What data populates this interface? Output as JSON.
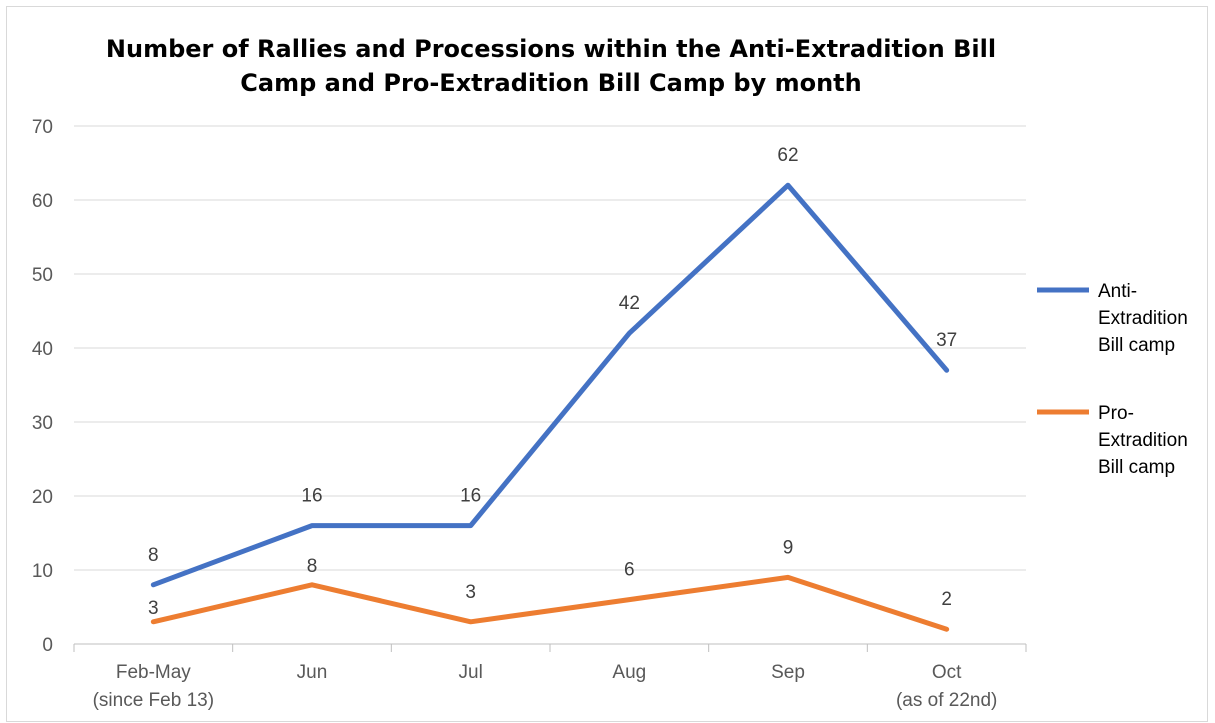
{
  "chart_data": {
    "type": "line",
    "title": [
      "Number of Rallies and Processions within the Anti-Extradition Bill",
      "Camp and Pro-Extradition Bill Camp by month"
    ],
    "categories": [
      [
        "Feb-May",
        "(since Feb 13)"
      ],
      [
        "Jun"
      ],
      [
        "Jul"
      ],
      [
        "Aug"
      ],
      [
        "Sep"
      ],
      [
        "Oct",
        "(as of 22nd)"
      ]
    ],
    "ylim": [
      0,
      70
    ],
    "yticks": [
      0,
      10,
      20,
      30,
      40,
      50,
      60,
      70
    ],
    "grid": true,
    "legend_position": "right",
    "series": [
      {
        "name": [
          "Anti-",
          "Extradition",
          "Bill camp"
        ],
        "color": "#4472C4",
        "values": [
          8,
          16,
          16,
          42,
          62,
          37
        ]
      },
      {
        "name": [
          "Pro-",
          "Extradition",
          "Bill camp"
        ],
        "color": "#ED7D31",
        "values": [
          3,
          8,
          3,
          6,
          9,
          2
        ]
      }
    ]
  }
}
